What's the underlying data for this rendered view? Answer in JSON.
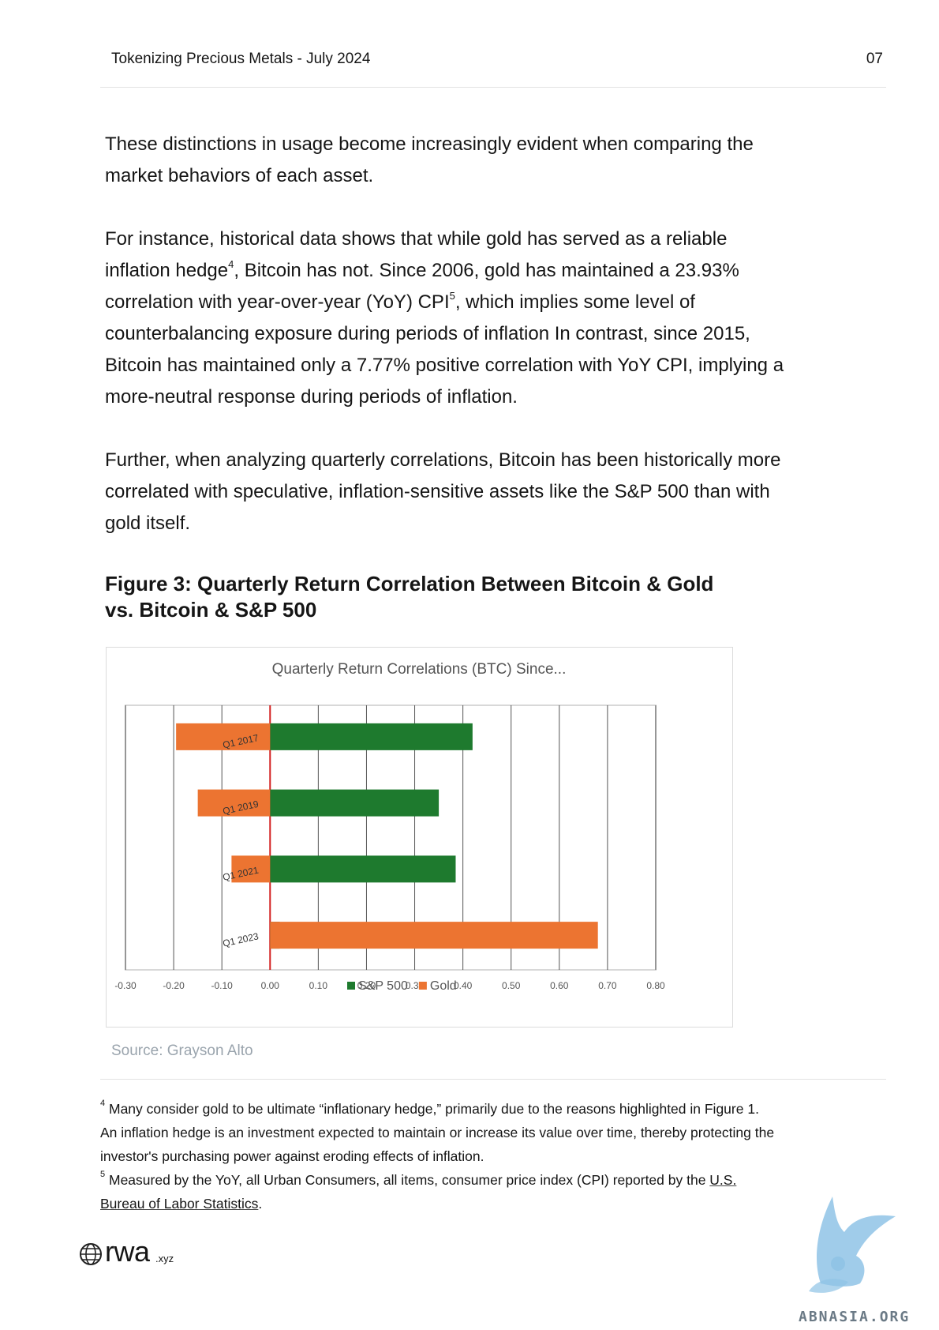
{
  "header": {
    "title": "Tokenizing Precious Metals - July 2024",
    "page_number": "07"
  },
  "paragraphs": {
    "p1": "These distinctions in usage become increasingly evident when comparing the market behaviors of each asset.",
    "p2_a": "For instance, historical data shows that while gold has served as a reliable inflation hedge",
    "p2_sup1": "4",
    "p2_b": ", Bitcoin has not. Since 2006, gold has maintained a 23.93% correlation with year-over-year (YoY) CPI",
    "p2_sup2": "5",
    "p2_c": ", which implies some level of counterbalancing exposure during periods of inflation In contrast, since 2015, Bitcoin has maintained only a 7.77% positive correlation with YoY CPI, implying a more-neutral response during periods of inflation.",
    "p3": "Further, when analyzing quarterly correlations, Bitcoin has been historically more correlated with speculative, inflation-sensitive assets like the S&P 500 than with gold itself."
  },
  "figure": {
    "title_line1": "Figure 3: Quarterly Return Correlation Between Bitcoin & Gold",
    "title_line2": "vs. Bitcoin & S&P 500",
    "source": "Source: Grayson Alto"
  },
  "chart_data": {
    "type": "bar",
    "orientation": "horizontal",
    "title": "Quarterly Return Correlations (BTC) Since...",
    "categories": [
      "Q1 2017",
      "Q1 2019",
      "Q1 2021",
      "Q1 2023"
    ],
    "series": [
      {
        "name": "S&P 500",
        "color": "#1e7a2e",
        "values": [
          0.42,
          0.35,
          0.385,
          0.02
        ]
      },
      {
        "name": "Gold",
        "color": "#ec7431",
        "values": [
          -0.195,
          -0.15,
          -0.08,
          0.68
        ]
      }
    ],
    "xlim": [
      -0.3,
      0.8
    ],
    "x_ticks": [
      "-0.30",
      "-0.20",
      "-0.10",
      "0.00",
      "0.10",
      "0.20",
      "0.30",
      "0.40",
      "0.50",
      "0.60",
      "0.70",
      "0.80"
    ],
    "zero_line_color": "#d32222",
    "grid": true,
    "legend_position": "bottom"
  },
  "footnotes": {
    "fn4_num": "4",
    "fn4_text": "Many consider gold to be ultimate “inflationary hedge,” primarily due to the reasons highlighted in Figure 1. An inflation hedge is an investment expected to maintain or increase its value over time, thereby protecting the investor's purchasing power against eroding effects of inflation.",
    "fn5_num": "5",
    "fn5_text": "Measured by the YoY, all Urban Consumers, all items, consumer price index (CPI) reported by the ",
    "fn5_link": "U.S. Bureau of Labor Statistics",
    "fn5_end": "."
  },
  "brand": {
    "name": "rwa",
    "suffix": ".xyz"
  },
  "watermark": {
    "text": "ABNASIA.ORG"
  }
}
